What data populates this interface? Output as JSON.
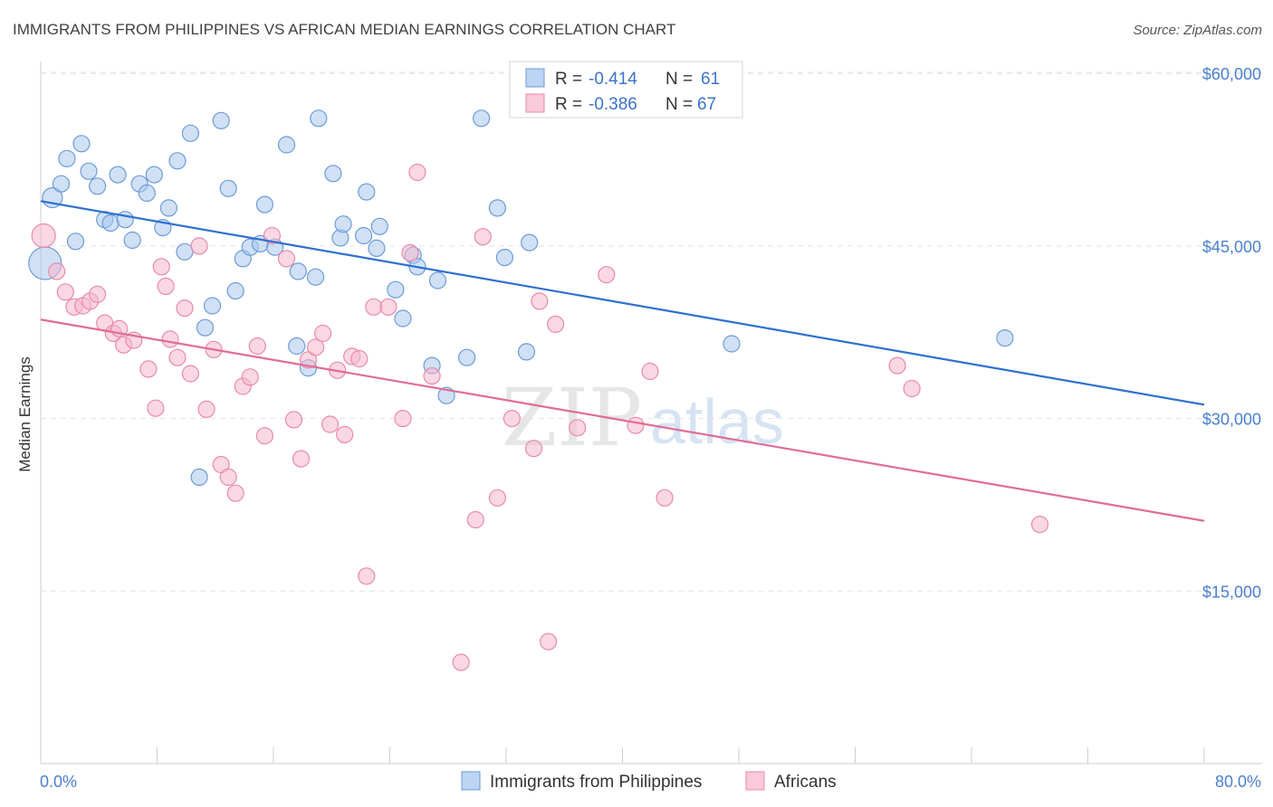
{
  "title": "IMMIGRANTS FROM PHILIPPINES VS AFRICAN MEDIAN EARNINGS CORRELATION CHART",
  "source": "Source: ZipAtlas.com",
  "watermark": {
    "zip": "ZIP",
    "atlas": "atlas"
  },
  "legend_box": {
    "rows": [
      {
        "r_label": "R =",
        "r_value": "-0.414",
        "n_label": "N =",
        "n_value": "61"
      },
      {
        "r_label": "R =",
        "r_value": "-0.386",
        "n_label": "N =",
        "n_value": "67"
      }
    ]
  },
  "chart_data": {
    "type": "scatter",
    "title": "IMMIGRANTS FROM PHILIPPINES VS AFRICAN MEDIAN EARNINGS CORRELATION CHART",
    "xlabel": "",
    "ylabel": "Median Earnings",
    "xlim": [
      0,
      80
    ],
    "ylim": [
      0,
      64000
    ],
    "x_tick_labels": [
      "0.0%",
      "80.0%"
    ],
    "y_ticks": [
      15000,
      30000,
      45000,
      60000
    ],
    "y_tick_labels": [
      "$15,000",
      "$30,000",
      "$45,000",
      "$60,000"
    ],
    "grid": true,
    "legend_position": "bottom-center",
    "series": [
      {
        "name": "Immigrants from Philippines",
        "color": "#a9c8ee",
        "stroke": "#6d9bd8",
        "line_color": "#2f6fd0",
        "trend": {
          "x": [
            0,
            80
          ],
          "y": [
            48900,
            31200
          ]
        },
        "points": [
          [
            0.3,
            43500,
            18
          ],
          [
            0.8,
            49200,
            11
          ],
          [
            1.4,
            50400,
            9
          ],
          [
            1.8,
            52600,
            9
          ],
          [
            2.4,
            45400,
            9
          ],
          [
            2.8,
            53900,
            9
          ],
          [
            3.3,
            51500,
            9
          ],
          [
            3.9,
            50200,
            9
          ],
          [
            4.4,
            47300,
            9
          ],
          [
            4.8,
            47000,
            9
          ],
          [
            5.3,
            51200,
            9
          ],
          [
            5.8,
            47300,
            9
          ],
          [
            6.3,
            45500,
            9
          ],
          [
            6.8,
            50400,
            9
          ],
          [
            7.3,
            49600,
            9
          ],
          [
            7.8,
            51200,
            9
          ],
          [
            8.4,
            46600,
            9
          ],
          [
            8.8,
            48300,
            9
          ],
          [
            9.4,
            52400,
            9
          ],
          [
            9.9,
            44500,
            9
          ],
          [
            10.3,
            54800,
            9
          ],
          [
            10.9,
            24900,
            9
          ],
          [
            11.3,
            37900,
            9
          ],
          [
            11.8,
            39800,
            9
          ],
          [
            12.4,
            55900,
            9
          ],
          [
            12.9,
            50000,
            9
          ],
          [
            13.4,
            41100,
            9
          ],
          [
            13.9,
            43900,
            9
          ],
          [
            14.4,
            44900,
            9
          ],
          [
            15.1,
            45200,
            9
          ],
          [
            15.4,
            48600,
            9
          ],
          [
            16.1,
            44900,
            9
          ],
          [
            16.9,
            53800,
            9
          ],
          [
            17.6,
            36300,
            9
          ],
          [
            17.7,
            42800,
            9
          ],
          [
            18.4,
            34400,
            9
          ],
          [
            18.9,
            42300,
            9
          ],
          [
            19.1,
            56100,
            9
          ],
          [
            20.1,
            51300,
            9
          ],
          [
            20.6,
            45700,
            9
          ],
          [
            20.8,
            46900,
            9
          ],
          [
            22.2,
            45900,
            9
          ],
          [
            22.4,
            49700,
            9
          ],
          [
            23.1,
            44800,
            9
          ],
          [
            23.3,
            46700,
            9
          ],
          [
            24.4,
            41200,
            9
          ],
          [
            24.9,
            38700,
            9
          ],
          [
            25.6,
            44200,
            9
          ],
          [
            25.9,
            43200,
            9
          ],
          [
            26.9,
            34600,
            9
          ],
          [
            27.3,
            42000,
            9
          ],
          [
            27.9,
            32000,
            9
          ],
          [
            29.3,
            35300,
            9
          ],
          [
            30.3,
            56100,
            9
          ],
          [
            31.4,
            48300,
            9
          ],
          [
            31.9,
            44000,
            9
          ],
          [
            33.4,
            35800,
            9
          ],
          [
            33.6,
            45300,
            9
          ],
          [
            47.5,
            36500,
            9
          ],
          [
            66.3,
            37000,
            9
          ]
        ]
      },
      {
        "name": "Africans",
        "color": "#f6b8cc",
        "stroke": "#e98aaa",
        "line_color": "#e06c96",
        "trend": {
          "x": [
            0,
            80
          ],
          "y": [
            38600,
            21100
          ]
        },
        "points": [
          [
            0.2,
            45900,
            13
          ],
          [
            1.1,
            42800,
            9
          ],
          [
            1.7,
            41000,
            9
          ],
          [
            2.3,
            39700,
            9
          ],
          [
            2.9,
            39800,
            9
          ],
          [
            3.4,
            40200,
            9
          ],
          [
            3.9,
            40800,
            9
          ],
          [
            4.4,
            38300,
            9
          ],
          [
            5.0,
            37400,
            9
          ],
          [
            5.4,
            37800,
            9
          ],
          [
            5.7,
            36400,
            9
          ],
          [
            6.4,
            36800,
            9
          ],
          [
            7.4,
            34300,
            9
          ],
          [
            7.9,
            30900,
            9
          ],
          [
            8.3,
            43200,
            9
          ],
          [
            8.6,
            41500,
            9
          ],
          [
            8.9,
            36900,
            9
          ],
          [
            9.4,
            35300,
            9
          ],
          [
            9.9,
            39600,
            9
          ],
          [
            10.3,
            33900,
            9
          ],
          [
            10.9,
            45000,
            9
          ],
          [
            11.4,
            30800,
            9
          ],
          [
            11.9,
            36000,
            9
          ],
          [
            12.4,
            26000,
            9
          ],
          [
            12.9,
            24900,
            9
          ],
          [
            13.4,
            23500,
            9
          ],
          [
            13.9,
            32800,
            9
          ],
          [
            14.4,
            33600,
            9
          ],
          [
            14.9,
            36300,
            9
          ],
          [
            15.4,
            28500,
            9
          ],
          [
            15.9,
            45900,
            9
          ],
          [
            16.9,
            43900,
            9
          ],
          [
            17.4,
            29900,
            9
          ],
          [
            17.9,
            26500,
            9
          ],
          [
            18.4,
            35100,
            9
          ],
          [
            18.9,
            36200,
            9
          ],
          [
            19.4,
            37400,
            9
          ],
          [
            19.9,
            29500,
            9
          ],
          [
            20.4,
            34200,
            9
          ],
          [
            20.9,
            28600,
            9
          ],
          [
            21.4,
            35400,
            9
          ],
          [
            21.9,
            35200,
            9
          ],
          [
            22.4,
            16300,
            9
          ],
          [
            22.9,
            39700,
            9
          ],
          [
            23.9,
            39700,
            9
          ],
          [
            24.9,
            30000,
            9
          ],
          [
            25.4,
            44400,
            9
          ],
          [
            25.9,
            51400,
            9
          ],
          [
            26.9,
            33700,
            9
          ],
          [
            28.9,
            8800,
            9
          ],
          [
            29.9,
            21200,
            9
          ],
          [
            30.4,
            45800,
            9
          ],
          [
            31.4,
            23100,
            9
          ],
          [
            32.4,
            30000,
            9
          ],
          [
            33.9,
            27400,
            9
          ],
          [
            34.3,
            40200,
            9
          ],
          [
            34.9,
            10600,
            9
          ],
          [
            35.4,
            38200,
            9
          ],
          [
            36.9,
            29200,
            9
          ],
          [
            38.9,
            42500,
            9
          ],
          [
            40.9,
            29400,
            9
          ],
          [
            41.9,
            34100,
            9
          ],
          [
            42.9,
            23100,
            9
          ],
          [
            58.9,
            34600,
            9
          ],
          [
            59.9,
            32600,
            9
          ],
          [
            68.7,
            20800,
            9
          ]
        ]
      }
    ]
  }
}
